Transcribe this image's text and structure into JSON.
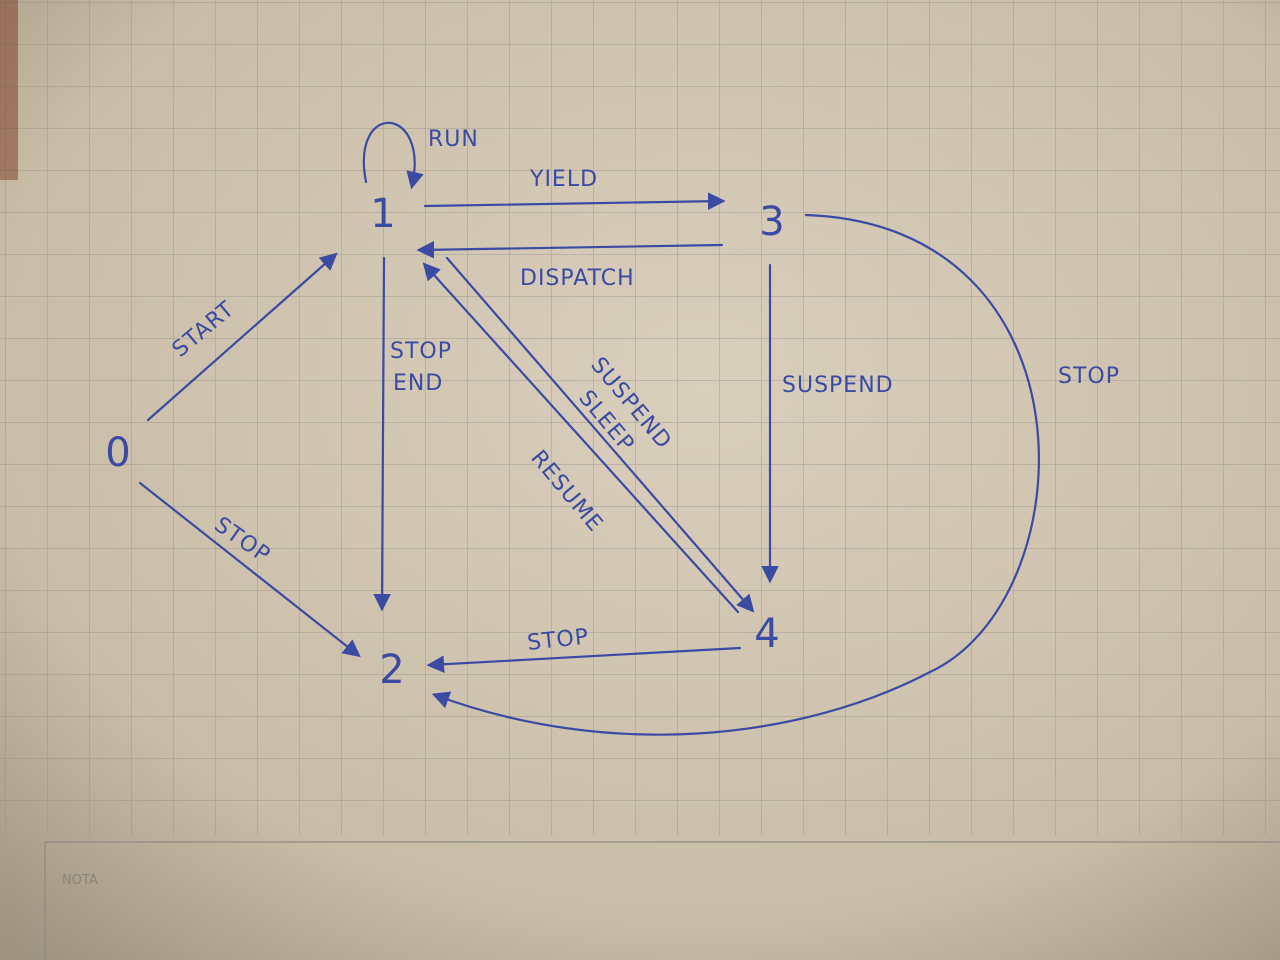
{
  "nodes": [
    {
      "label": "0"
    },
    {
      "label": "1"
    },
    {
      "label": "2"
    },
    {
      "label": "3"
    },
    {
      "label": "4"
    }
  ],
  "edges": [
    {
      "label": [
        "START"
      ]
    },
    {
      "label": [
        "STOP"
      ]
    },
    {
      "label": [
        "RUN"
      ]
    },
    {
      "label": [
        "YIELD"
      ]
    },
    {
      "label": [
        "DISPATCH"
      ]
    },
    {
      "label": [
        "STOP",
        "END"
      ]
    },
    {
      "label": [
        "SUSPEND",
        "SLEEP"
      ]
    },
    {
      "label": [
        "RESUME"
      ]
    },
    {
      "label": [
        "SUSPEND"
      ]
    },
    {
      "label": [
        "STOP"
      ]
    },
    {
      "label": [
        "STOP"
      ]
    }
  ],
  "footer": {
    "label": "NOTA"
  }
}
